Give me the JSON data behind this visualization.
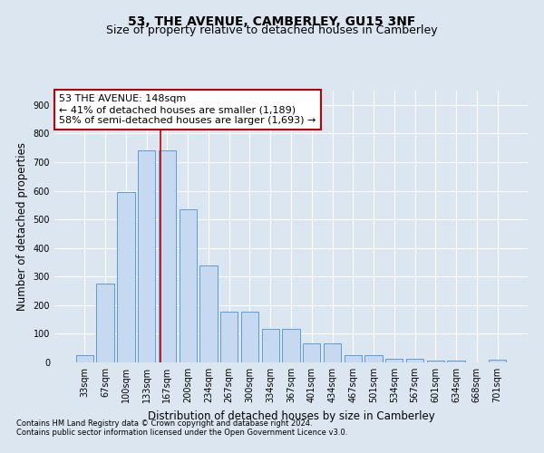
{
  "title": "53, THE AVENUE, CAMBERLEY, GU15 3NF",
  "subtitle": "Size of property relative to detached houses in Camberley",
  "xlabel": "Distribution of detached houses by size in Camberley",
  "ylabel": "Number of detached properties",
  "footnote1": "Contains HM Land Registry data © Crown copyright and database right 2024.",
  "footnote2": "Contains public sector information licensed under the Open Government Licence v3.0.",
  "bar_labels": [
    "33sqm",
    "67sqm",
    "100sqm",
    "133sqm",
    "167sqm",
    "200sqm",
    "234sqm",
    "267sqm",
    "300sqm",
    "334sqm",
    "367sqm",
    "401sqm",
    "434sqm",
    "467sqm",
    "501sqm",
    "534sqm",
    "567sqm",
    "601sqm",
    "634sqm",
    "668sqm",
    "701sqm"
  ],
  "bar_values": [
    25,
    275,
    595,
    740,
    740,
    535,
    340,
    178,
    178,
    118,
    118,
    65,
    65,
    25,
    25,
    12,
    12,
    7,
    7,
    0,
    8
  ],
  "bar_color": "#c6d9f0",
  "bar_edge_color": "#5b9bd5",
  "annotation_text": "53 THE AVENUE: 148sqm\n← 41% of detached houses are smaller (1,189)\n58% of semi-detached houses are larger (1,693) →",
  "annotation_box_color": "#ffffff",
  "annotation_box_edge_color": "#c00000",
  "vline_x": 3.67,
  "vline_color": "#c00000",
  "ylim": [
    0,
    950
  ],
  "yticks": [
    0,
    100,
    200,
    300,
    400,
    500,
    600,
    700,
    800,
    900
  ],
  "background_color": "#dce6f1",
  "plot_bg_color": "#dce6f1",
  "grid_color": "#ffffff",
  "title_fontsize": 10,
  "subtitle_fontsize": 9,
  "axis_label_fontsize": 8.5,
  "tick_fontsize": 7,
  "annotation_fontsize": 8,
  "footnote_fontsize": 6
}
